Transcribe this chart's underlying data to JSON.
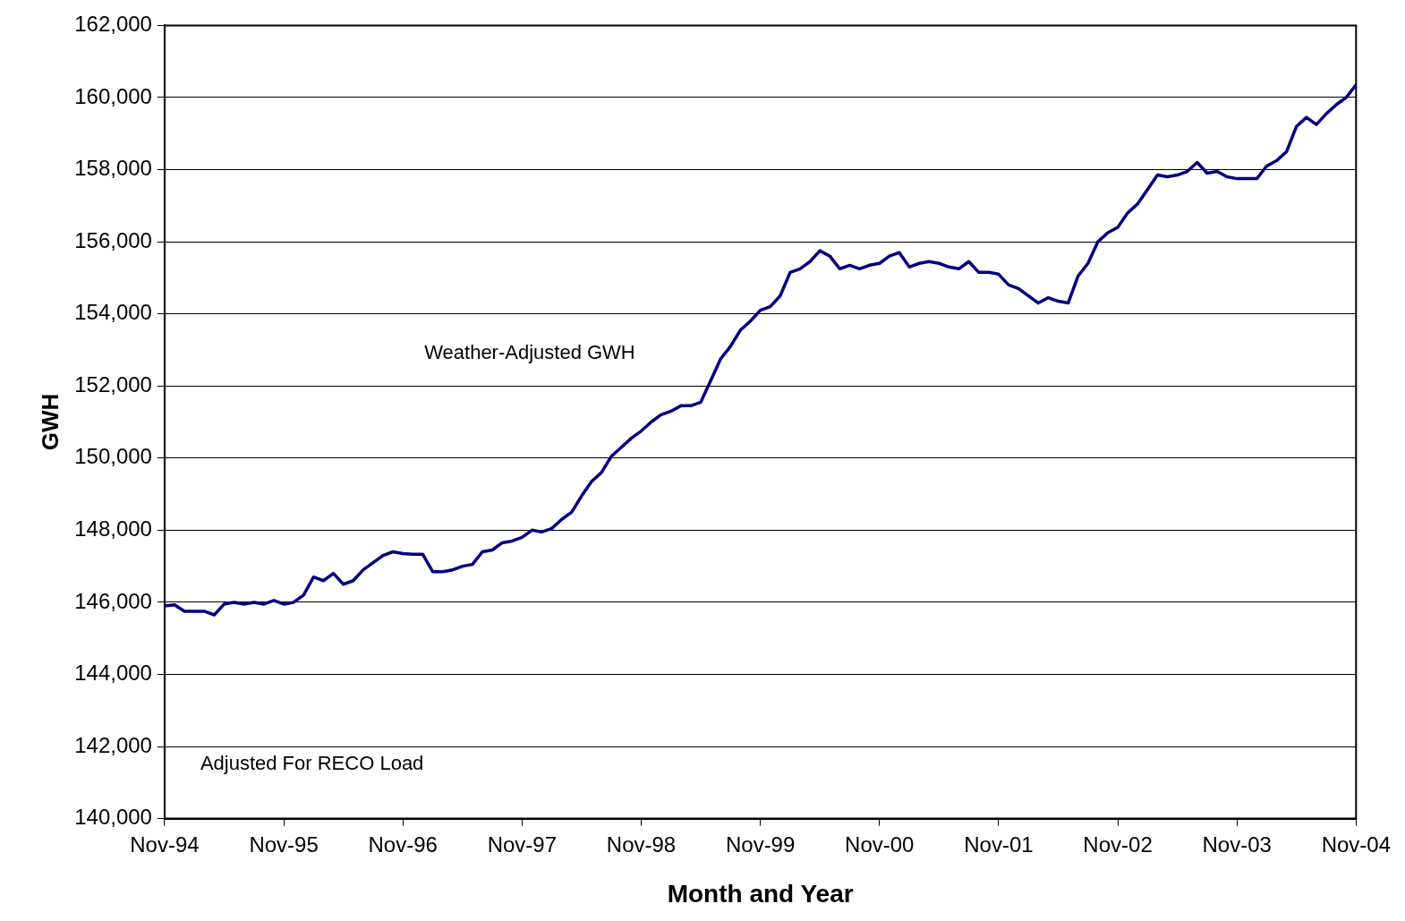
{
  "chart_data": {
    "type": "line",
    "xlabel": "Month and Year",
    "ylabel": "GWH",
    "annotations": [
      "Adjusted For RECO Load"
    ],
    "x": [
      "1994-11",
      "1994-12",
      "1995-01",
      "1995-02",
      "1995-03",
      "1995-04",
      "1995-05",
      "1995-06",
      "1995-07",
      "1995-08",
      "1995-09",
      "1995-10",
      "1995-11",
      "1995-12",
      "1996-01",
      "1996-02",
      "1996-03",
      "1996-04",
      "1996-05",
      "1996-06",
      "1996-07",
      "1996-08",
      "1996-09",
      "1996-10",
      "1996-11",
      "1996-12",
      "1997-01",
      "1997-02",
      "1997-03",
      "1997-04",
      "1997-05",
      "1997-06",
      "1997-07",
      "1997-08",
      "1997-09",
      "1997-10",
      "1997-11",
      "1997-12",
      "1998-01",
      "1998-02",
      "1998-03",
      "1998-04",
      "1998-05",
      "1998-06",
      "1998-07",
      "1998-08",
      "1998-09",
      "1998-10",
      "1998-11",
      "1998-12",
      "1999-01",
      "1999-02",
      "1999-03",
      "1999-04",
      "1999-05",
      "1999-06",
      "1999-07",
      "1999-08",
      "1999-09",
      "1999-10",
      "1999-11",
      "1999-12",
      "2000-01",
      "2000-02",
      "2000-03",
      "2000-04",
      "2000-05",
      "2000-06",
      "2000-07",
      "2000-08",
      "2000-09",
      "2000-10",
      "2000-11",
      "2000-12",
      "2001-01",
      "2001-02",
      "2001-03",
      "2001-04",
      "2001-05",
      "2001-06",
      "2001-07",
      "2001-08",
      "2001-09",
      "2001-10",
      "2001-11",
      "2001-12",
      "2002-01",
      "2002-02",
      "2002-03",
      "2002-04",
      "2002-05",
      "2002-06",
      "2002-07",
      "2002-08",
      "2002-09",
      "2002-10",
      "2002-11",
      "2002-12",
      "2003-01",
      "2003-02",
      "2003-03",
      "2003-04",
      "2003-05",
      "2003-06",
      "2003-07",
      "2003-08",
      "2003-09",
      "2003-10",
      "2003-11",
      "2003-12",
      "2004-01",
      "2004-02",
      "2004-03",
      "2004-04",
      "2004-05",
      "2004-06",
      "2004-07",
      "2004-08",
      "2004-09",
      "2004-10",
      "2004-11"
    ],
    "series": [
      {
        "name": "Weather-Adjusted GWH",
        "color": "#000080",
        "values": [
          145900,
          145930,
          145750,
          145750,
          145750,
          145650,
          145950,
          146000,
          145950,
          146000,
          145950,
          146050,
          145950,
          146000,
          146200,
          146700,
          146600,
          146800,
          146500,
          146600,
          146900,
          147100,
          147300,
          147400,
          147350,
          147330,
          147330,
          146850,
          146850,
          146900,
          147000,
          147050,
          147400,
          147450,
          147650,
          147700,
          147800,
          148000,
          147950,
          148050,
          148300,
          148500,
          148950,
          149350,
          149600,
          150050,
          150300,
          150550,
          150750,
          151000,
          151200,
          151300,
          151450,
          151450,
          151550,
          152150,
          152750,
          153100,
          153550,
          153800,
          154100,
          154200,
          154500,
          155150,
          155250,
          155450,
          155750,
          155600,
          155250,
          155350,
          155250,
          155350,
          155400,
          155600,
          155700,
          155300,
          155400,
          155450,
          155400,
          155300,
          155250,
          155450,
          155150,
          155150,
          155100,
          154800,
          154700,
          154500,
          154300,
          154450,
          154350,
          154300,
          155050,
          155400,
          156000,
          156250,
          156400,
          156800,
          157050,
          157450,
          157850,
          157800,
          157850,
          157950,
          158200,
          157900,
          157950,
          157800,
          157750,
          157750,
          157750,
          158100,
          158250,
          158500,
          159200,
          159450,
          159250,
          159550,
          159800,
          160000,
          160350
        ]
      }
    ],
    "xlim": [
      "1994-11",
      "2004-11"
    ],
    "xticks": [
      {
        "value": "1994-11",
        "label": "Nov-94"
      },
      {
        "value": "1995-11",
        "label": "Nov-95"
      },
      {
        "value": "1996-11",
        "label": "Nov-96"
      },
      {
        "value": "1997-11",
        "label": "Nov-97"
      },
      {
        "value": "1998-11",
        "label": "Nov-98"
      },
      {
        "value": "1999-11",
        "label": "Nov-99"
      },
      {
        "value": "2000-11",
        "label": "Nov-00"
      },
      {
        "value": "2001-11",
        "label": "Nov-01"
      },
      {
        "value": "2002-11",
        "label": "Nov-02"
      },
      {
        "value": "2003-11",
        "label": "Nov-03"
      },
      {
        "value": "2004-11",
        "label": "Nov-04"
      }
    ],
    "ylim": [
      140000,
      162000
    ],
    "yticks": [
      {
        "value": 140000,
        "label": "140,000"
      },
      {
        "value": 142000,
        "label": "142,000"
      },
      {
        "value": 144000,
        "label": "144,000"
      },
      {
        "value": 146000,
        "label": "146,000"
      },
      {
        "value": 148000,
        "label": "148,000"
      },
      {
        "value": 150000,
        "label": "150,000"
      },
      {
        "value": 152000,
        "label": "152,000"
      },
      {
        "value": 154000,
        "label": "154,000"
      },
      {
        "value": 156000,
        "label": "156,000"
      },
      {
        "value": 158000,
        "label": "158,000"
      },
      {
        "value": 160000,
        "label": "160,000"
      },
      {
        "value": 162000,
        "label": "162,000"
      }
    ],
    "grid": "y",
    "legend": false,
    "marker": "none",
    "line_style": "solid"
  }
}
